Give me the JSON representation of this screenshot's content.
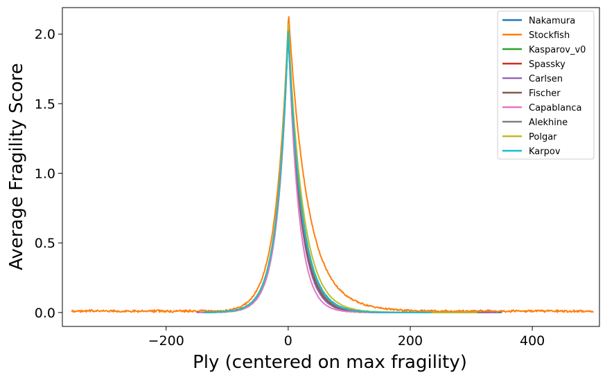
{
  "chart_data": {
    "type": "line",
    "xlabel": "Ply (centered on max fragility)",
    "ylabel": "Average Fragility Score",
    "xlim": [
      -370,
      510
    ],
    "ylim": [
      -0.1,
      2.19
    ],
    "x_ticks": [
      -200,
      0,
      200,
      400
    ],
    "x_tick_labels": [
      "−200",
      "0",
      "200",
      "400"
    ],
    "y_ticks": [
      0.0,
      0.5,
      1.0,
      1.5,
      2.0
    ],
    "y_tick_labels": [
      "0.0",
      "0.5",
      "1.0",
      "1.5",
      "2.0"
    ],
    "grid": false,
    "legend_position": "top-right",
    "series": [
      {
        "name": "Nakamura",
        "color": "#1f77b4",
        "x_range": [
          -140,
          350
        ],
        "peak": 2.05,
        "left_decay": 18,
        "right_decay": 22,
        "offset": 0.0
      },
      {
        "name": "Stockfish",
        "color": "#ff7f0e",
        "x_range": [
          -355,
          500
        ],
        "peak": 2.09,
        "left_decay": 20,
        "right_decay": 30,
        "offset": 0.0,
        "right_tail_amp": 0.1,
        "right_tail_decay": 90,
        "tail_floor": 0.01
      },
      {
        "name": "Kasparov_v0",
        "color": "#2ca02c",
        "x_range": [
          -130,
          320
        ],
        "peak": 2.03,
        "left_decay": 18,
        "right_decay": 21,
        "offset": 0.0
      },
      {
        "name": "Spassky",
        "color": "#d62728",
        "x_range": [
          -140,
          330
        ],
        "peak": 2.04,
        "left_decay": 18,
        "right_decay": 20,
        "offset": 0.0
      },
      {
        "name": "Carlsen",
        "color": "#9467bd",
        "x_range": [
          -150,
          340
        ],
        "peak": 2.06,
        "left_decay": 17,
        "right_decay": 19,
        "offset": 0.0
      },
      {
        "name": "Fischer",
        "color": "#8c564b",
        "x_range": [
          -135,
          300
        ],
        "peak": 2.02,
        "left_decay": 17,
        "right_decay": 20,
        "offset": 0.0
      },
      {
        "name": "Capablanca",
        "color": "#e377c2",
        "x_range": [
          -145,
          310
        ],
        "peak": 2.03,
        "left_decay": 17,
        "right_decay": 17,
        "offset": 0.0
      },
      {
        "name": "Alekhine",
        "color": "#7f7f7f",
        "x_range": [
          -140,
          320
        ],
        "peak": 2.04,
        "left_decay": 18,
        "right_decay": 21,
        "offset": 0.0
      },
      {
        "name": "Polgar",
        "color": "#bcbd22",
        "x_range": [
          -130,
          310
        ],
        "peak": 2.07,
        "left_decay": 18,
        "right_decay": 24,
        "offset": 0.0
      },
      {
        "name": "Karpov",
        "color": "#17becf",
        "x_range": [
          -140,
          235
        ],
        "peak": 2.02,
        "left_decay": 18,
        "right_decay": 22,
        "offset": 0.0
      }
    ]
  }
}
